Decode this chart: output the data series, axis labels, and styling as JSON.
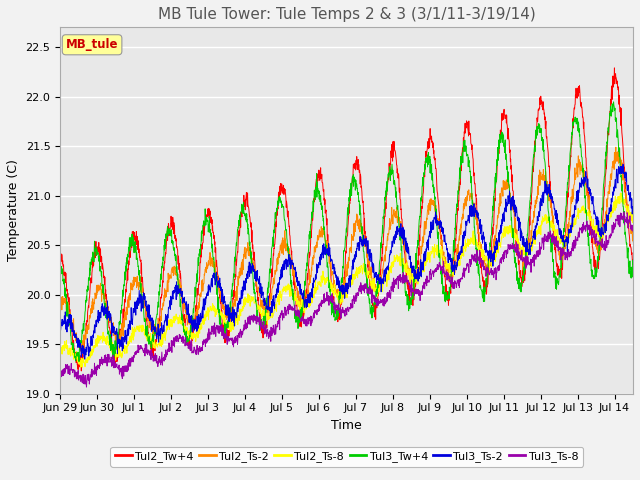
{
  "title": "MB Tule Tower: Tule Temps 2 & 3 (3/1/11-3/19/14)",
  "xlabel": "Time",
  "ylabel": "Temperature (C)",
  "ylim": [
    19.0,
    22.7
  ],
  "xlim_days": 15.5,
  "legend_label": "MB_tule",
  "series": {
    "Tul2_Tw+4": {
      "color": "#ff0000"
    },
    "Tul2_Ts-2": {
      "color": "#ff8800"
    },
    "Tul2_Ts-8": {
      "color": "#ffff00"
    },
    "Tul3_Tw+4": {
      "color": "#00cc00"
    },
    "Tul3_Ts-2": {
      "color": "#0000dd"
    },
    "Tul3_Ts-8": {
      "color": "#9900aa"
    }
  },
  "x_tick_labels": [
    "Jun 29",
    "Jun 30",
    "Jul 1",
    "Jul 2",
    "Jul 3",
    "Jul 4",
    "Jul 5",
    "Jul 6",
    "Jul 7",
    "Jul 8",
    "Jul 9",
    "Jul 10",
    "Jul 11",
    "Jul 12",
    "Jul 13",
    "Jul 14"
  ],
  "background_color": "#e8e8e8",
  "grid_color": "#ffffff",
  "title_fontsize": 11,
  "axis_fontsize": 9,
  "tick_fontsize": 8,
  "legend_box_color": "#ffff99",
  "legend_text_color": "#cc0000"
}
